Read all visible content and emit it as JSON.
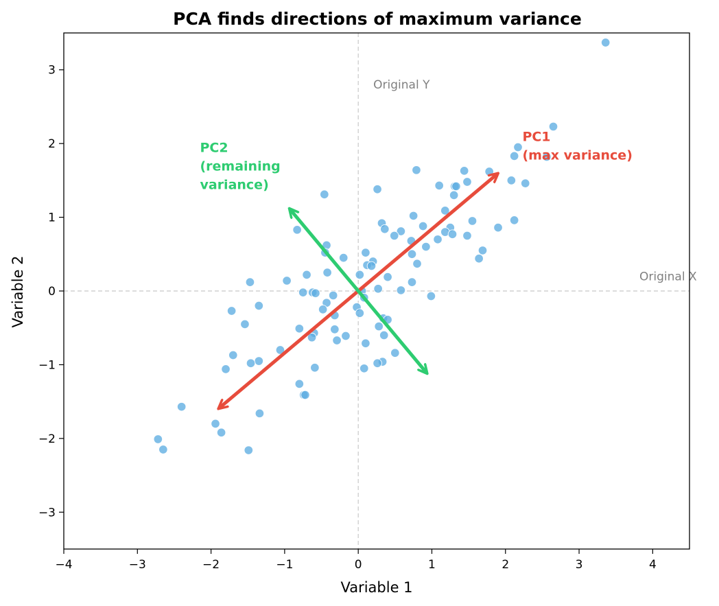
{
  "chart_data": {
    "type": "scatter",
    "title": "PCA finds directions of maximum variance",
    "xlabel": "Variable 1",
    "ylabel": "Variable 2",
    "xlim": [
      -4,
      4.5
    ],
    "ylim": [
      -3.5,
      3.5
    ],
    "xticks": [
      -4,
      -3,
      -2,
      -1,
      0,
      1,
      2,
      3,
      4
    ],
    "yticks": [
      -3,
      -2,
      -1,
      0,
      1,
      2,
      3
    ],
    "xtick_labels": [
      "−4",
      "−3",
      "−2",
      "−1",
      "0",
      "1",
      "2",
      "3",
      "4"
    ],
    "ytick_labels": [
      "−3",
      "−2",
      "−1",
      "0",
      "1",
      "2",
      "3"
    ],
    "grid": false,
    "reference_lines": [
      {
        "orientation": "vertical",
        "value": 0,
        "label": "Original Y"
      },
      {
        "orientation": "horizontal",
        "value": 0,
        "label": "Original X"
      }
    ],
    "point_color": "#5dade2",
    "points": [
      [
        3.36,
        3.37
      ],
      [
        2.65,
        2.23
      ],
      [
        2.17,
        1.95
      ],
      [
        2.12,
        1.83
      ],
      [
        2.56,
        1.82
      ],
      [
        0.79,
        1.64
      ],
      [
        1.44,
        1.63
      ],
      [
        1.78,
        1.62
      ],
      [
        2.08,
        1.5
      ],
      [
        1.48,
        1.48
      ],
      [
        2.27,
        1.46
      ],
      [
        1.1,
        1.43
      ],
      [
        1.31,
        1.42
      ],
      [
        1.33,
        1.42
      ],
      [
        0.26,
        1.38
      ],
      [
        -0.46,
        1.31
      ],
      [
        1.3,
        1.3
      ],
      [
        1.18,
        1.09
      ],
      [
        0.75,
        1.02
      ],
      [
        2.12,
        0.96
      ],
      [
        1.55,
        0.95
      ],
      [
        0.32,
        0.92
      ],
      [
        0.88,
        0.88
      ],
      [
        1.25,
        0.86
      ],
      [
        1.9,
        0.86
      ],
      [
        -0.83,
        0.83
      ],
      [
        0.36,
        0.84
      ],
      [
        0.58,
        0.81
      ],
      [
        1.18,
        0.8
      ],
      [
        1.28,
        0.77
      ],
      [
        1.48,
        0.75
      ],
      [
        0.49,
        0.75
      ],
      [
        1.08,
        0.7
      ],
      [
        0.72,
        0.68
      ],
      [
        -0.43,
        0.62
      ],
      [
        0.92,
        0.6
      ],
      [
        1.69,
        0.55
      ],
      [
        0.1,
        0.52
      ],
      [
        -0.45,
        0.52
      ],
      [
        0.73,
        0.5
      ],
      [
        1.64,
        0.44
      ],
      [
        -0.2,
        0.45
      ],
      [
        0.2,
        0.4
      ],
      [
        0.8,
        0.37
      ],
      [
        0.12,
        0.35
      ],
      [
        0.18,
        0.34
      ],
      [
        -0.42,
        0.25
      ],
      [
        0.02,
        0.22
      ],
      [
        -0.7,
        0.22
      ],
      [
        0.4,
        0.19
      ],
      [
        -0.97,
        0.14
      ],
      [
        -1.47,
        0.12
      ],
      [
        0.73,
        0.12
      ],
      [
        0.05,
        0.0
      ],
      [
        0.58,
        0.01
      ],
      [
        0.27,
        0.03
      ],
      [
        -0.75,
        -0.02
      ],
      [
        -0.62,
        -0.02
      ],
      [
        -0.58,
        -0.03
      ],
      [
        -0.34,
        -0.06
      ],
      [
        0.08,
        -0.09
      ],
      [
        0.99,
        -0.07
      ],
      [
        -1.35,
        -0.2
      ],
      [
        -0.43,
        -0.16
      ],
      [
        -0.02,
        -0.22
      ],
      [
        -1.72,
        -0.27
      ],
      [
        -0.48,
        -0.25
      ],
      [
        0.02,
        -0.3
      ],
      [
        -0.32,
        -0.33
      ],
      [
        0.34,
        -0.37
      ],
      [
        0.4,
        -0.39
      ],
      [
        -1.54,
        -0.45
      ],
      [
        0.28,
        -0.48
      ],
      [
        -0.8,
        -0.51
      ],
      [
        -0.32,
        -0.52
      ],
      [
        -0.6,
        -0.57
      ],
      [
        -0.63,
        -0.63
      ],
      [
        0.35,
        -0.6
      ],
      [
        -0.17,
        -0.61
      ],
      [
        -0.29,
        -0.67
      ],
      [
        0.1,
        -0.71
      ],
      [
        -1.7,
        -0.87
      ],
      [
        0.5,
        -0.84
      ],
      [
        -1.06,
        -0.8
      ],
      [
        -1.35,
        -0.95
      ],
      [
        -1.46,
        -0.98
      ],
      [
        0.33,
        -0.96
      ],
      [
        0.26,
        -0.98
      ],
      [
        -1.8,
        -1.06
      ],
      [
        -0.59,
        -1.04
      ],
      [
        0.08,
        -1.05
      ],
      [
        -0.8,
        -1.26
      ],
      [
        -0.74,
        -1.41
      ],
      [
        -0.72,
        -1.41
      ],
      [
        -2.4,
        -1.57
      ],
      [
        -1.34,
        -1.66
      ],
      [
        -1.94,
        -1.8
      ],
      [
        -1.86,
        -1.92
      ],
      [
        -2.72,
        -2.01
      ],
      [
        -2.65,
        -2.15
      ],
      [
        -1.49,
        -2.16
      ]
    ],
    "arrows": [
      {
        "name": "PC1",
        "color": "#e74c3c",
        "from": [
          0,
          0
        ],
        "to": [
          1.88,
          1.58
        ],
        "both_ends": true,
        "from_end": [
          -1.88,
          -1.58
        ]
      },
      {
        "name": "PC2",
        "color": "#2ecc71",
        "from": [
          0,
          0
        ],
        "to": [
          -0.92,
          1.1
        ],
        "both_ends": true,
        "from_end": [
          0.92,
          -1.1
        ]
      }
    ],
    "annotations": [
      {
        "text": [
          "PC1",
          "(max variance)"
        ],
        "x": 2.23,
        "y": 2.1,
        "color": "#e74c3c"
      },
      {
        "text": [
          "PC2",
          "(remaining",
          "variance)"
        ],
        "x": -2.15,
        "y": 1.95,
        "color": "#2ecc71"
      }
    ]
  }
}
